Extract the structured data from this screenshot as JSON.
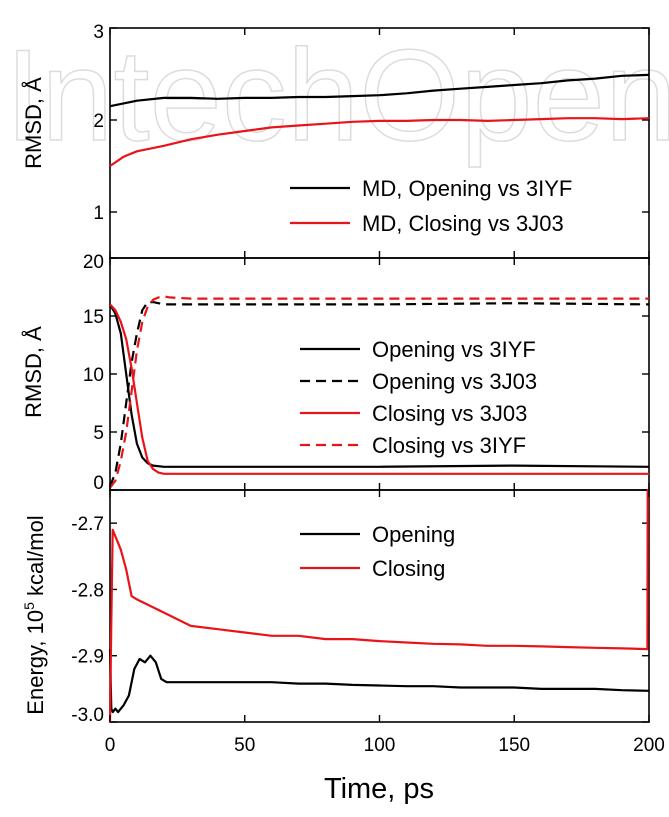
{
  "chart_data": {
    "type": "line",
    "xlabel": "Time, ps",
    "xlim": [
      0,
      200
    ],
    "x_ticks": [
      "0",
      "50",
      "100",
      "150",
      "200"
    ],
    "panels": [
      {
        "ylabel": "RMSD, Å",
        "ylim": [
          0.5,
          3
        ],
        "y_ticks": [
          "1",
          "2",
          "3"
        ],
        "series": [
          {
            "name": "MD, Opening vs 3IYF",
            "color": "#000000",
            "style": "solid",
            "x": [
              0,
              5,
              10,
              20,
              30,
              40,
              50,
              60,
              70,
              80,
              90,
              100,
              110,
              120,
              130,
              140,
              150,
              160,
              170,
              180,
              190,
              200
            ],
            "y": [
              2.15,
              2.18,
              2.21,
              2.24,
              2.24,
              2.23,
              2.24,
              2.24,
              2.25,
              2.25,
              2.26,
              2.27,
              2.29,
              2.32,
              2.34,
              2.36,
              2.38,
              2.4,
              2.43,
              2.45,
              2.48,
              2.49
            ]
          },
          {
            "name": "MD, Closing vs 3J03",
            "color": "#e8141a",
            "style": "solid",
            "x": [
              0,
              5,
              10,
              20,
              30,
              40,
              50,
              60,
              70,
              80,
              90,
              100,
              110,
              120,
              130,
              140,
              150,
              160,
              170,
              180,
              190,
              200
            ],
            "y": [
              1.5,
              1.6,
              1.66,
              1.72,
              1.79,
              1.84,
              1.88,
              1.92,
              1.94,
              1.96,
              1.98,
              1.99,
              1.99,
              2.0,
              2.0,
              1.99,
              2.0,
              2.01,
              2.02,
              2.02,
              2.01,
              2.02
            ]
          }
        ]
      },
      {
        "ylabel": "RMSD, Å",
        "ylim": [
          0,
          20
        ],
        "y_ticks": [
          "0",
          "5",
          "10",
          "15",
          "20"
        ],
        "series": [
          {
            "name": "Opening vs 3IYF",
            "color": "#000000",
            "style": "solid",
            "x": [
              0,
              2,
              4,
              6,
              8,
              10,
              12,
              14,
              16,
              20,
              30,
              50,
              100,
              150,
              200
            ],
            "y": [
              16.0,
              15.2,
              13.5,
              10.0,
              6.5,
              4.0,
              2.8,
              2.3,
              2.1,
              2.0,
              2.0,
              2.0,
              2.0,
              2.1,
              2.0
            ]
          },
          {
            "name": "Opening vs 3J03",
            "color": "#000000",
            "style": "dashed",
            "x": [
              0,
              2,
              4,
              6,
              8,
              10,
              12,
              14,
              16,
              18,
              20,
              30,
              50,
              100,
              150,
              200
            ],
            "y": [
              0.3,
              1.5,
              4.0,
              7.5,
              11.0,
              13.5,
              15.5,
              16.2,
              16.2,
              16.1,
              16.0,
              16.0,
              16.0,
              16.0,
              16.1,
              16.0
            ]
          },
          {
            "name": "Closing vs 3J03",
            "color": "#e8141a",
            "style": "solid",
            "x": [
              0,
              2,
              4,
              6,
              8,
              10,
              12,
              14,
              16,
              18,
              20,
              30,
              50,
              100,
              150,
              200
            ],
            "y": [
              16.0,
              15.5,
              14.5,
              13.0,
              10.5,
              7.5,
              4.5,
              2.5,
              1.8,
              1.5,
              1.4,
              1.4,
              1.4,
              1.4,
              1.4,
              1.4
            ]
          },
          {
            "name": "Closing vs 3IYF",
            "color": "#e8141a",
            "style": "dashed",
            "x": [
              0,
              2,
              4,
              6,
              8,
              10,
              12,
              14,
              16,
              18,
              20,
              22,
              30,
              50,
              100,
              150,
              200
            ],
            "y": [
              0.2,
              0.8,
              2.5,
              5.0,
              8.5,
              12.0,
              14.5,
              15.8,
              16.4,
              16.6,
              16.7,
              16.6,
              16.5,
              16.5,
              16.5,
              16.5,
              16.5
            ]
          }
        ]
      },
      {
        "ylabel": "Energy, 10",
        "ylabel_sup": "5",
        "ylabel_suffix": " kcal/mol",
        "ylim": [
          -3.0,
          -2.65
        ],
        "y_ticks": [
          "-3.0",
          "-2.9",
          "-2.8",
          "-2.7"
        ],
        "series": [
          {
            "name": "Opening",
            "color": "#000000",
            "style": "solid",
            "x": [
              0,
              0.5,
              1,
              2,
              3,
              4,
              5,
              7,
              9,
              11,
              13,
              15,
              17,
              19,
              21,
              25,
              30,
              40,
              50,
              60,
              70,
              80,
              90,
              100,
              110,
              120,
              130,
              140,
              150,
              160,
              170,
              180,
              190,
              200
            ],
            "y": [
              -2.89,
              -2.98,
              -2.985,
              -2.98,
              -2.985,
              -2.98,
              -2.975,
              -2.96,
              -2.92,
              -2.905,
              -2.91,
              -2.9,
              -2.91,
              -2.935,
              -2.94,
              -2.94,
              -2.94,
              -2.94,
              -2.94,
              -2.94,
              -2.942,
              -2.942,
              -2.944,
              -2.945,
              -2.946,
              -2.946,
              -2.948,
              -2.948,
              -2.948,
              -2.95,
              -2.95,
              -2.95,
              -2.952,
              -2.953
            ]
          },
          {
            "name": "Closing",
            "color": "#e8141a",
            "style": "solid",
            "x": [
              0,
              0.5,
              1,
              2,
              4,
              6,
              8,
              10,
              15,
              20,
              30,
              40,
              50,
              60,
              70,
              80,
              90,
              100,
              110,
              120,
              130,
              140,
              150,
              160,
              170,
              180,
              190,
              199.4,
              199.5,
              200
            ],
            "y": [
              -3.0,
              -2.85,
              -2.71,
              -2.72,
              -2.74,
              -2.77,
              -2.81,
              -2.815,
              -2.825,
              -2.835,
              -2.855,
              -2.86,
              -2.865,
              -2.87,
              -2.87,
              -2.875,
              -2.875,
              -2.878,
              -2.88,
              -2.882,
              -2.883,
              -2.885,
              -2.885,
              -2.886,
              -2.887,
              -2.888,
              -2.889,
              -2.89,
              -2.65,
              -2.65
            ]
          }
        ]
      }
    ]
  }
}
